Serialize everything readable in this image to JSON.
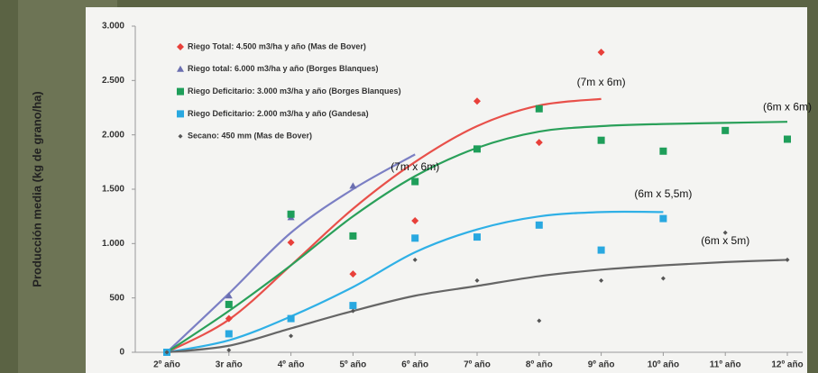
{
  "chart_data": {
    "type": "scatter",
    "y_label": "Producción media (kg de grano/ha)",
    "categories": [
      "2º año",
      "3r año",
      "4º año",
      "5º año",
      "6º año",
      "7º año",
      "8º año",
      "9º año",
      "10º año",
      "11º año",
      "12º año"
    ],
    "ylim": [
      0,
      3000
    ],
    "yticks": [
      0,
      500,
      {
        "value": 1000,
        "label": "1.000"
      },
      {
        "value": 1500,
        "label": "1.500"
      },
      {
        "value": 2000,
        "label": "2.000"
      },
      {
        "value": 2500,
        "label": "2.500"
      },
      {
        "value": 3000,
        "label": "3.000"
      }
    ],
    "grid": false,
    "legend": "upper left",
    "series": [
      {
        "name": "Riego Total: 4.500 m3/ha y año (Mas de Bover)",
        "color": "#e8403a",
        "marker": "diamond",
        "values": [
          0,
          310,
          1010,
          720,
          1210,
          2310,
          1930,
          2760,
          null,
          null,
          null
        ]
      },
      {
        "name": "Riego total: 6.000 m3/ha y año (Borges Blanques)",
        "color": "#6b6fb0",
        "marker": "triangle",
        "values": [
          0,
          520,
          1240,
          1530,
          null,
          null,
          null,
          null,
          null,
          null,
          null
        ]
      },
      {
        "name": "Riego Deficitario: 3.000 m3/ha y año (Borges Blanques)",
        "color": "#1e9e5a",
        "marker": "square",
        "values": [
          0,
          440,
          1270,
          1070,
          1570,
          1870,
          2240,
          1950,
          1850,
          2040,
          1960
        ]
      },
      {
        "name": "Riego Deficitario: 2.000 m3/ha y año (Gandesa)",
        "color": "#29a8e0",
        "marker": "square",
        "values": [
          0,
          170,
          310,
          430,
          1050,
          1060,
          1170,
          940,
          1230,
          null,
          null
        ]
      },
      {
        "name": "Secano: 450 mm (Mas de Bover)",
        "color": "#555555",
        "marker": "small",
        "values": [
          0,
          20,
          150,
          380,
          850,
          660,
          290,
          660,
          680,
          1100,
          850
        ]
      }
    ],
    "trend_lines": [
      {
        "color": "#e8504a",
        "values": [
          0,
          300,
          800,
          1320,
          1750,
          2080,
          2270,
          2330,
          null,
          null,
          null
        ]
      },
      {
        "color": "#7b7fc4",
        "values": [
          0,
          540,
          1100,
          1500,
          1820,
          null,
          null,
          null,
          null,
          null,
          null
        ]
      },
      {
        "color": "#2aa05a",
        "values": [
          0,
          380,
          800,
          1250,
          1620,
          1880,
          2030,
          2080,
          2100,
          2110,
          2120
        ]
      },
      {
        "color": "#2fb0e6",
        "values": [
          0,
          110,
          330,
          600,
          920,
          1130,
          1250,
          1290,
          1290,
          null,
          null
        ]
      },
      {
        "color": "#666666",
        "values": [
          0,
          60,
          220,
          380,
          520,
          610,
          700,
          760,
          800,
          830,
          850
        ]
      }
    ],
    "annotations": [
      {
        "text": "(7m x 6m)",
        "x": 4,
        "y": 1700
      },
      {
        "text": "(7m x 6m)",
        "x": 7,
        "y": 2480
      },
      {
        "text": "(6m x 6m)",
        "x": 10,
        "y": 2250
      },
      {
        "text": "(6m x 5,5m)",
        "x": 8,
        "y": 1450
      },
      {
        "text": "(6m x 5m)",
        "x": 9,
        "y": 1020
      }
    ]
  }
}
